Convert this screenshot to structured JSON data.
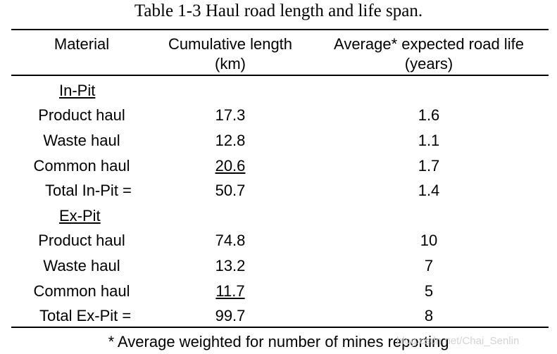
{
  "title": "Table 1-3 Haul road length and life span.",
  "headers": {
    "material": "Material",
    "length_line1": "Cumulative length",
    "length_line2": "(km)",
    "life_line1": "Average* expected road life",
    "life_line2": "(years)"
  },
  "in_pit": {
    "label": "In-Pit",
    "rows": [
      {
        "material": "Product haul",
        "length": "17.3",
        "life": "1.6"
      },
      {
        "material": "Waste haul",
        "length": "12.8",
        "life": "1.1"
      },
      {
        "material": "Common haul",
        "length": "20.6",
        "life": "1.7"
      }
    ],
    "total": {
      "label": "Total In-Pit =",
      "length": "50.7",
      "life": "1.4"
    }
  },
  "ex_pit": {
    "label": "Ex-Pit",
    "rows": [
      {
        "material": "Product haul",
        "length": "74.8",
        "life": "10"
      },
      {
        "material": "Waste haul",
        "length": "13.2",
        "life": "7"
      },
      {
        "material": "Common haul",
        "length": "11.7",
        "life": "5"
      }
    ],
    "total": {
      "label": "Total Ex-Pit =",
      "length": "99.7",
      "life": "8"
    }
  },
  "footnote": "* Average weighted for number of mines reporting",
  "watermark": "blog.csdn.net/Chai_Senlin"
}
